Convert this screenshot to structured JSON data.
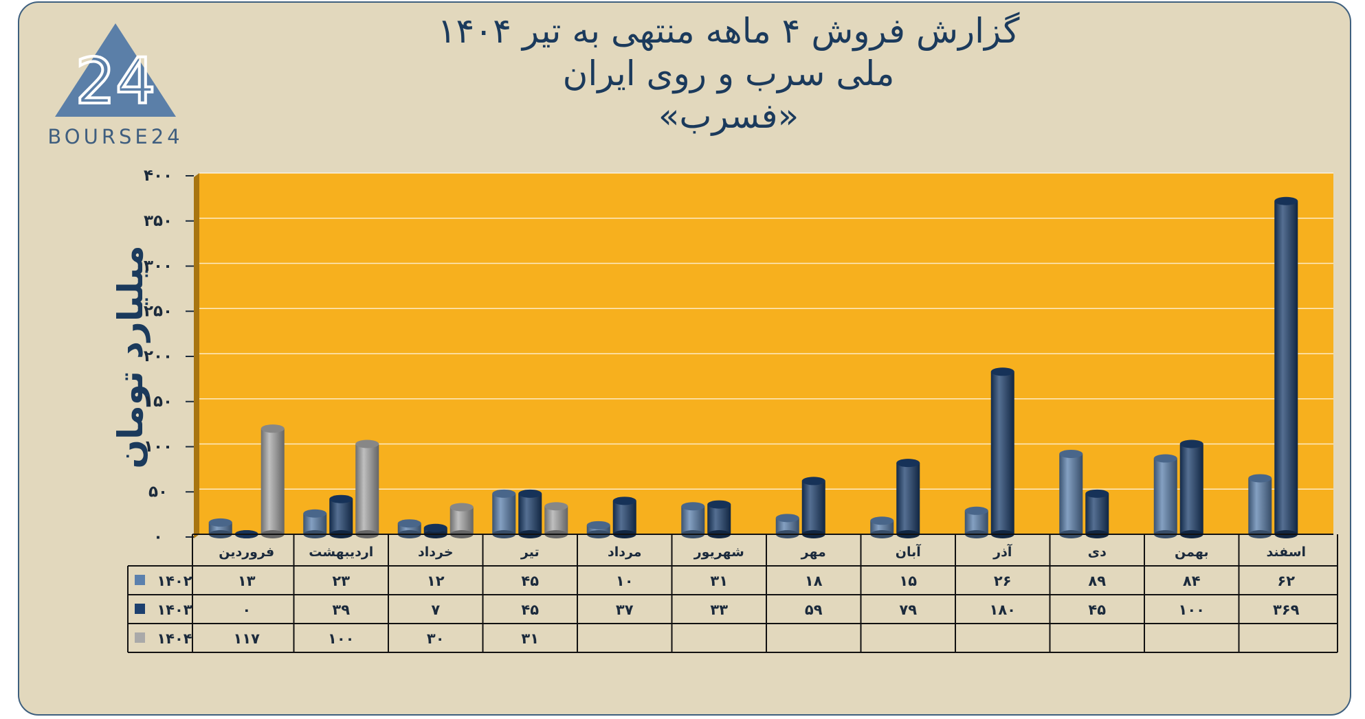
{
  "brand": {
    "logo_text": "BOURSE24",
    "logo_digits": "24"
  },
  "title": {
    "line1": "گزارش  فروش ۴ ماهه منتهی به تیر ۱۴۰۴",
    "line2": "ملی سرب و روی ایران",
    "line3": "«فسرب»"
  },
  "chart_data": {
    "type": "bar",
    "ylabel": "میلیارد تومان",
    "ylim": [
      0,
      400
    ],
    "yticks": [
      {
        "value": 0,
        "label": "۰"
      },
      {
        "value": 50,
        "label": "۵۰"
      },
      {
        "value": 100,
        "label": "۱۰۰"
      },
      {
        "value": 150,
        "label": "۱۵۰"
      },
      {
        "value": 200,
        "label": "۲۰۰"
      },
      {
        "value": 250,
        "label": "۲۵۰"
      },
      {
        "value": 300,
        "label": "۳۰۰"
      },
      {
        "value": 350,
        "label": "۳۵۰"
      },
      {
        "value": 400,
        "label": "۴۰۰"
      }
    ],
    "grid": true,
    "legend": "data-table",
    "categories": [
      "فروردین",
      "اردیبهشت",
      "خرداد",
      "تیر",
      "مرداد",
      "شهریور",
      "مهر",
      "آبان",
      "آذر",
      "دی",
      "بهمن",
      "اسفند"
    ],
    "series": [
      {
        "name": "۱۴۰۲",
        "color": "#5b80ad",
        "values": [
          13,
          23,
          12,
          45,
          10,
          31,
          18,
          15,
          26,
          89,
          84,
          62
        ],
        "labels": [
          "۱۳",
          "۲۳",
          "۱۲",
          "۴۵",
          "۱۰",
          "۳۱",
          "۱۸",
          "۱۵",
          "۲۶",
          "۸۹",
          "۸۴",
          "۶۲"
        ]
      },
      {
        "name": "۱۴۰۳",
        "color": "#1c3f6e",
        "values": [
          0,
          39,
          7,
          45,
          37,
          33,
          59,
          79,
          180,
          45,
          100,
          369
        ],
        "labels": [
          "۰",
          "۳۹",
          "۷",
          "۴۵",
          "۳۷",
          "۳۳",
          "۵۹",
          "۷۹",
          "۱۸۰",
          "۴۵",
          "۱۰۰",
          "۳۶۹"
        ]
      },
      {
        "name": "۱۴۰۴",
        "color": "#a9a9a9",
        "values": [
          117,
          100,
          30,
          31,
          null,
          null,
          null,
          null,
          null,
          null,
          null,
          null
        ],
        "labels": [
          "۱۱۷",
          "۱۰۰",
          "۳۰",
          "۳۱",
          "",
          "",
          "",
          "",
          "",
          "",
          "",
          ""
        ]
      }
    ]
  },
  "colors": {
    "plot_background": "#f7b01e",
    "plot_side": "#a87511",
    "page_background": "#e2d8bd",
    "title_text": "#1b3a5c",
    "frame_border": "#3e5f7e"
  }
}
